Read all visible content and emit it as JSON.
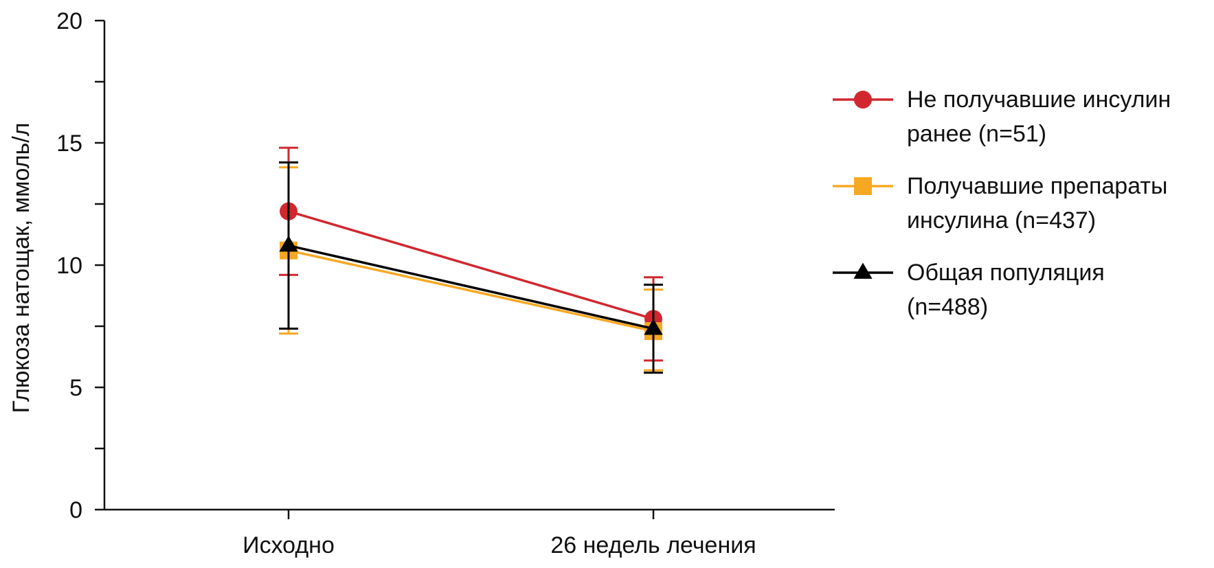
{
  "chart_data": {
    "type": "line",
    "categories": [
      "Исходно",
      "26 недель лечения"
    ],
    "ylabel": "Глюкоза натощак, ммоль/л",
    "xlabel": "",
    "ylim": [
      0,
      20
    ],
    "yticks": [
      0,
      5,
      10,
      15,
      20
    ],
    "grid": false,
    "legend_position": "right",
    "series": [
      {
        "name": "Не получавшие инсулин ранее (n=51)",
        "legend_label": "Не получавшие инсулин\nранее (n=51)",
        "color": "#d1272f",
        "marker": "circle",
        "values": [
          12.2,
          7.8
        ],
        "err_low": [
          9.6,
          6.1
        ],
        "err_high": [
          14.8,
          9.5
        ]
      },
      {
        "name": "Получавшие препараты инсулина (n=437)",
        "legend_label": "Получавшие препараты\nинсулина (n=437)",
        "color": "#f7a823",
        "marker": "square",
        "values": [
          10.6,
          7.3
        ],
        "err_low": [
          7.2,
          5.7
        ],
        "err_high": [
          14.0,
          9.0
        ]
      },
      {
        "name": "Общая популяция (n=488)",
        "legend_label": "Общая популяция\n(n=488)",
        "color": "#000000",
        "marker": "triangle",
        "values": [
          10.8,
          7.4
        ],
        "err_low": [
          7.4,
          5.6
        ],
        "err_high": [
          14.2,
          9.2
        ]
      }
    ]
  }
}
